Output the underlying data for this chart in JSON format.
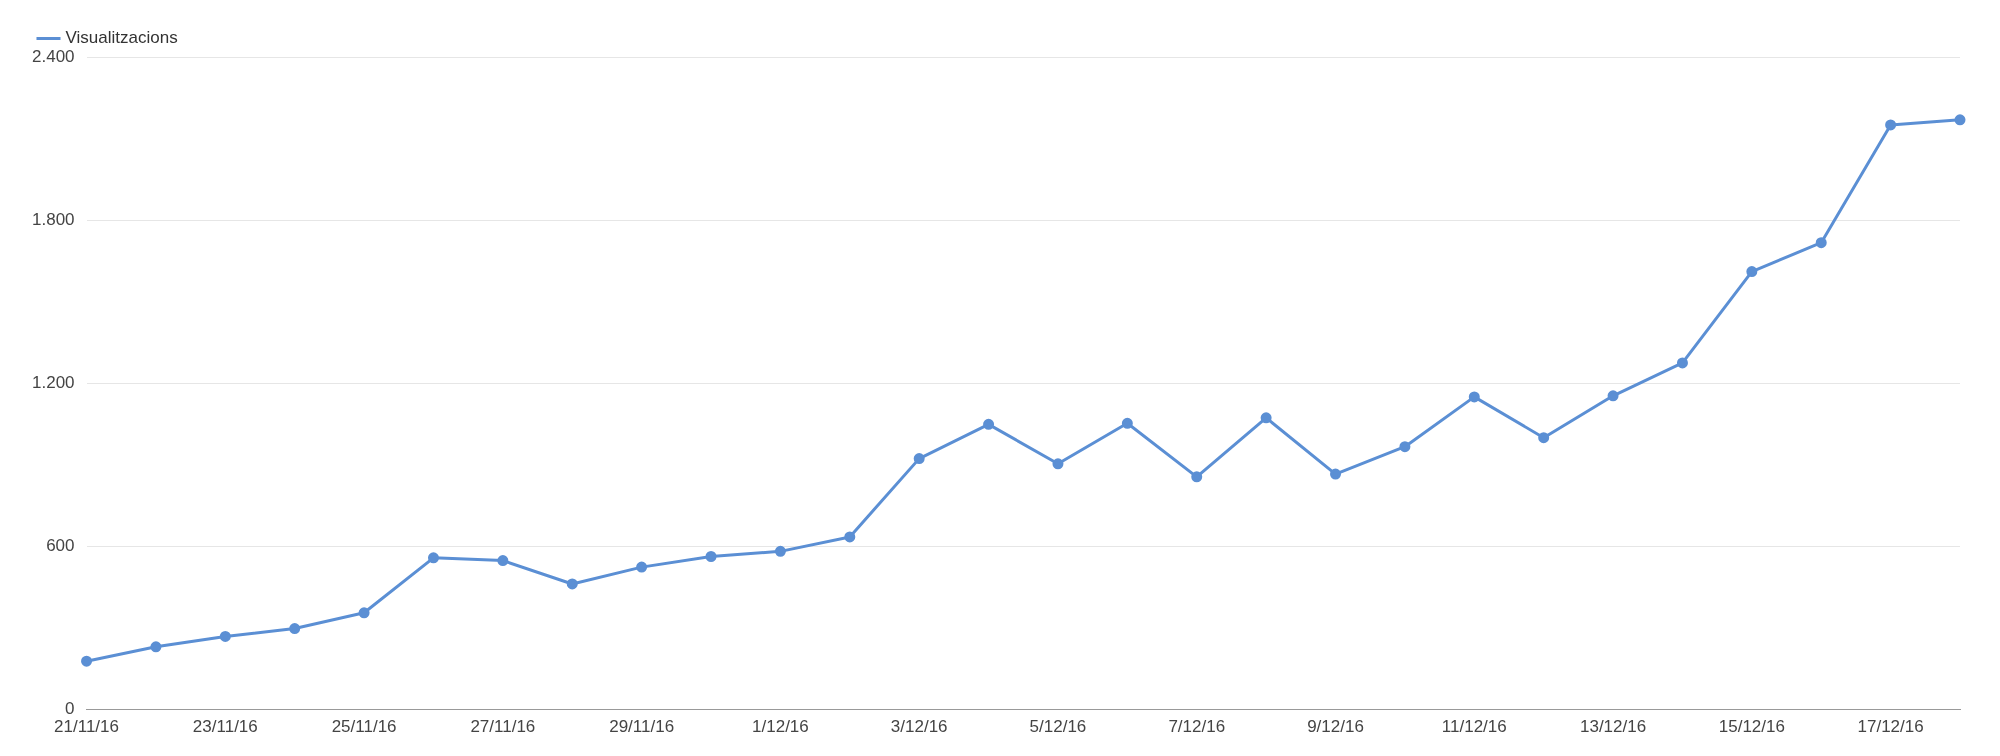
{
  "chart_data": {
    "type": "line",
    "categories": [
      "21/11/16",
      null,
      "23/11/16",
      null,
      "25/11/16",
      null,
      "27/11/16",
      null,
      "29/11/16",
      null,
      "1/12/16",
      null,
      "3/12/16",
      null,
      "5/12/16",
      null,
      "7/12/16",
      null,
      "9/12/16",
      null,
      "11/12/16",
      null,
      "13/12/16",
      null,
      "15/12/16",
      null,
      "17/12/16",
      null
    ],
    "series": [
      {
        "name": "Visualitzacions",
        "color": "#5b8fd4",
        "values": [
          178,
          231,
          269,
          298,
          356,
          558,
          548,
          462,
          524,
          563,
          582,
          635,
          923,
          1049,
          904,
          1053,
          856,
          1073,
          866,
          967,
          1150,
          1000,
          1154,
          1275,
          1611,
          1717,
          2150,
          2169
        ]
      }
    ],
    "ylim": [
      0,
      2400
    ],
    "yticks": [
      {
        "value": 0,
        "label": "0"
      },
      {
        "value": 600,
        "label": "600"
      },
      {
        "value": 1200,
        "label": "1.200"
      },
      {
        "value": 1800,
        "label": "1.800"
      },
      {
        "value": 2400,
        "label": "2.400"
      }
    ],
    "grid": "y",
    "legend": "top left",
    "marker": "circle",
    "line_style": "solid"
  }
}
